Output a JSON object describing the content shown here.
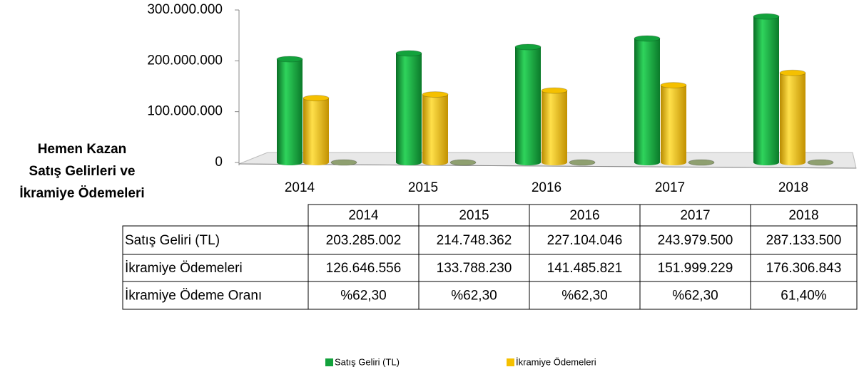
{
  "chart_data": {
    "type": "bar",
    "ylabel": [
      "Hemen Kazan",
      "Satış Gelirleri ve",
      "İkramiye Ödemeleri"
    ],
    "categories": [
      "2014",
      "2015",
      "2016",
      "2017",
      "2018"
    ],
    "series": [
      {
        "name": "Satış Geliri (TL)",
        "color": "#13a23c",
        "values": [
          203285002,
          214748362,
          227104046,
          243979500,
          287133500
        ],
        "value_labels": [
          "203.285.002",
          "214.748.362",
          "227.104.046",
          "243.979.500",
          "287.133.500"
        ],
        "show_in_legend": true
      },
      {
        "name": "İkramiye Ödemeleri",
        "color": "#f5c000",
        "values": [
          126646556,
          133788230,
          141485821,
          151999229,
          176306843
        ],
        "value_labels": [
          "126.646.556",
          "133.788.230",
          "141.485.821",
          "151.999.229",
          "176.306.843"
        ],
        "show_in_legend": true
      },
      {
        "name": "İkramiye Ödeme Oranı",
        "color": "#8fa070",
        "values": [
          62.3,
          62.3,
          62.3,
          62.3,
          61.4
        ],
        "value_labels": [
          "%62,30",
          "%62,30",
          "%62,30",
          "%62,30",
          "61,40%"
        ],
        "show_in_legend": false
      }
    ],
    "ylim": [
      0,
      300000000
    ],
    "yticks": [
      0,
      {
        "value": 100000000,
        "label": "100.000.000"
      },
      {
        "value": 200000000,
        "label": "200.000.000"
      },
      {
        "value": 300000000,
        "label": "300.000.000"
      }
    ]
  }
}
